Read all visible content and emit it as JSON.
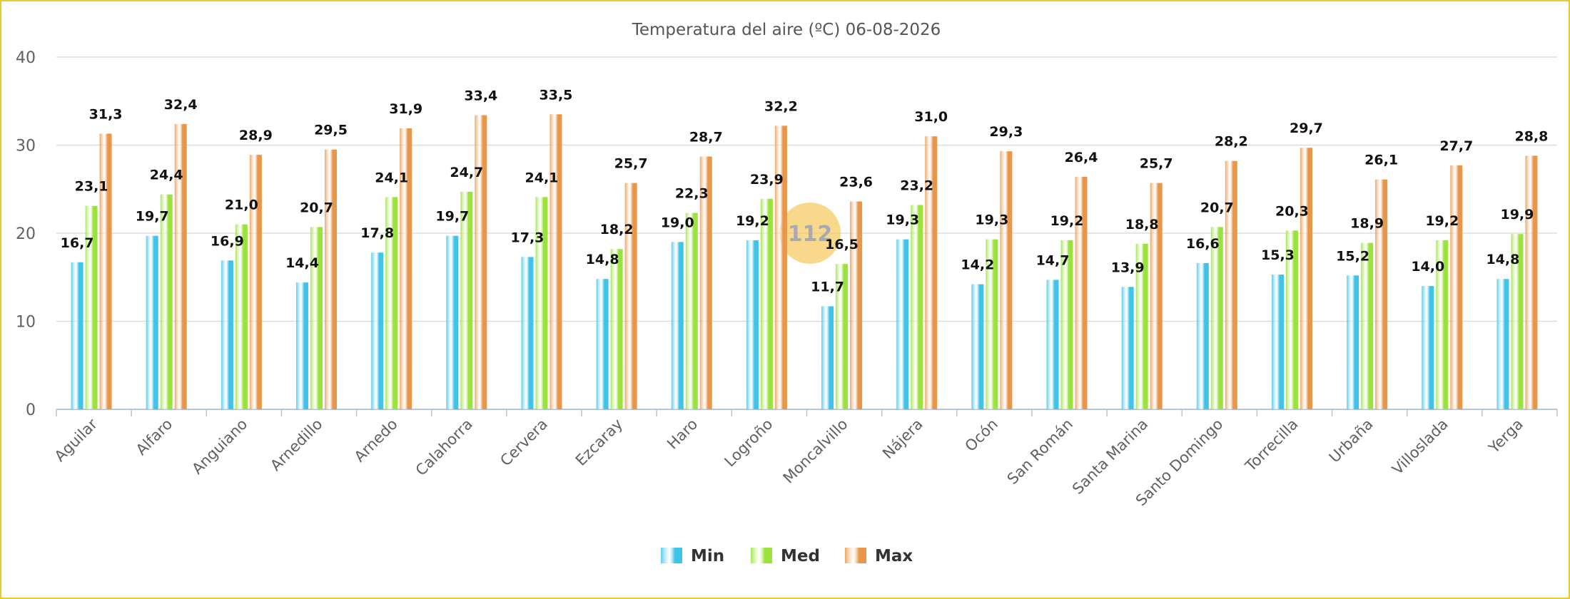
{
  "chart_data": {
    "type": "bar",
    "title": "Temperatura del aire (ºC) 06-08-2026",
    "categories": [
      "Aguilar",
      "Alfaro",
      "Anguiano",
      "Arnedillo",
      "Arnedo",
      "Calahorra",
      "Cervera",
      "Ezcaray",
      "Haro",
      "Logroño",
      "Moncalvillo",
      "Nájera",
      "Ocón",
      "San Román",
      "Santa Marina",
      "Santo Domingo",
      "Torrecilla",
      "Urbaña",
      "Villoslada",
      "Yerga"
    ],
    "series": [
      {
        "name": "Min",
        "color": "#3fc4e8",
        "values": [
          16.7,
          19.7,
          16.9,
          14.4,
          17.8,
          19.7,
          17.3,
          14.8,
          19.0,
          19.2,
          11.7,
          19.3,
          14.2,
          14.7,
          13.9,
          16.6,
          15.3,
          15.2,
          14.0,
          14.8
        ],
        "labels": [
          "16,7",
          "19,7",
          "16,9",
          "14,4",
          "17,8",
          "19,7",
          "17,3",
          "14,8",
          "19,0",
          "19,2",
          "11,7",
          "19,3",
          "14,2",
          "14,7",
          "13,9",
          "16,6",
          "15,3",
          "15,2",
          "14,0",
          "14,8"
        ]
      },
      {
        "name": "Med",
        "color": "#9be23c",
        "values": [
          23.1,
          24.4,
          21.0,
          20.7,
          24.1,
          24.7,
          24.1,
          18.2,
          22.3,
          23.9,
          16.5,
          23.2,
          19.3,
          19.2,
          18.8,
          20.7,
          20.3,
          18.9,
          19.2,
          19.9
        ],
        "labels": [
          "23,1",
          "24,4",
          "21,0",
          "20,7",
          "24,1",
          "24,7",
          "24,1",
          "18,2",
          "22,3",
          "23,9",
          "16,5",
          "23,2",
          "19,3",
          "19,2",
          "18,8",
          "20,7",
          "20,3",
          "18,9",
          "19,2",
          "19,9"
        ]
      },
      {
        "name": "Max",
        "color": "#e8974a",
        "values": [
          31.3,
          32.4,
          28.9,
          29.5,
          31.9,
          33.4,
          33.5,
          25.7,
          28.7,
          32.2,
          23.6,
          31.0,
          29.3,
          26.4,
          25.7,
          28.2,
          29.7,
          26.1,
          27.7,
          28.8
        ],
        "labels": [
          "31,3",
          "32,4",
          "28,9",
          "29,5",
          "31,9",
          "33,4",
          "33,5",
          "25,7",
          "28,7",
          "32,2",
          "23,6",
          "31,0",
          "29,3",
          "26,4",
          "25,7",
          "28,2",
          "29,7",
          "26,1",
          "27,7",
          "28,8"
        ]
      }
    ],
    "ylim": [
      0,
      40
    ],
    "yticks": [
      0,
      10,
      20,
      30,
      40
    ],
    "grid": true,
    "legend_position": "bottom-center"
  },
  "watermark": {
    "text": "112"
  }
}
